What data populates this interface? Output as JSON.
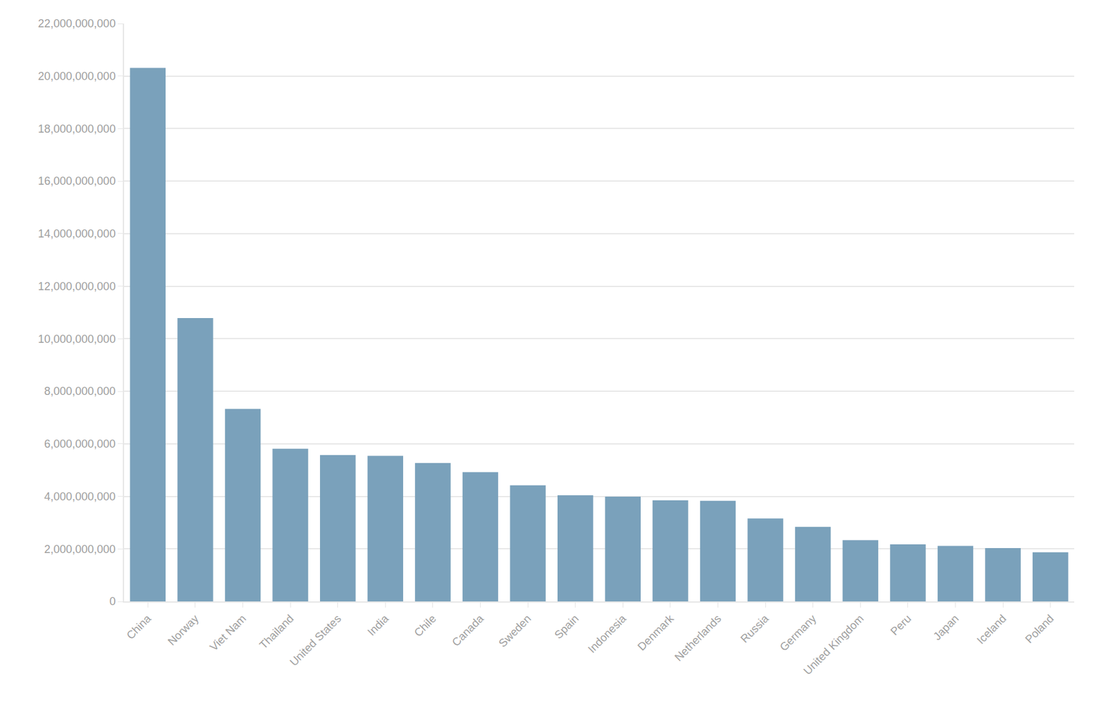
{
  "chart_data": {
    "type": "bar",
    "categories": [
      "China",
      "Norway",
      "Viet Nam",
      "Thailand",
      "United States",
      "India",
      "Chile",
      "Canada",
      "Sweden",
      "Spain",
      "Indonesia",
      "Denmark",
      "Netherlands",
      "Russia",
      "Germany",
      "United Kingdom",
      "Peru",
      "Japan",
      "Iceland",
      "Poland"
    ],
    "values": [
      20310000000,
      10790000000,
      7330000000,
      5810000000,
      5570000000,
      5540000000,
      5270000000,
      4920000000,
      4420000000,
      4040000000,
      3990000000,
      3850000000,
      3830000000,
      3160000000,
      2840000000,
      2330000000,
      2170000000,
      2110000000,
      2030000000,
      1870000000
    ],
    "color": "#7aa1bb",
    "ylim": [
      0,
      22000000000
    ],
    "yticks": [
      0,
      {
        "value": 2000000000,
        "label": "2,000,000,000"
      },
      {
        "value": 4000000000,
        "label": "4,000,000,000"
      },
      {
        "value": 6000000000,
        "label": "6,000,000,000"
      },
      {
        "value": 8000000000,
        "label": "8,000,000,000"
      },
      {
        "value": 10000000000,
        "label": "10,000,000,000"
      },
      {
        "value": 12000000000,
        "label": "12,000,000,000"
      },
      {
        "value": 14000000000,
        "label": "14,000,000,000"
      },
      {
        "value": 16000000000,
        "label": "16,000,000,000"
      },
      {
        "value": 18000000000,
        "label": "18,000,000,000"
      },
      {
        "value": 20000000000,
        "label": "20,000,000,000"
      },
      {
        "value": 22000000000,
        "label": "22,000,000,000"
      }
    ],
    "grid": true
  }
}
